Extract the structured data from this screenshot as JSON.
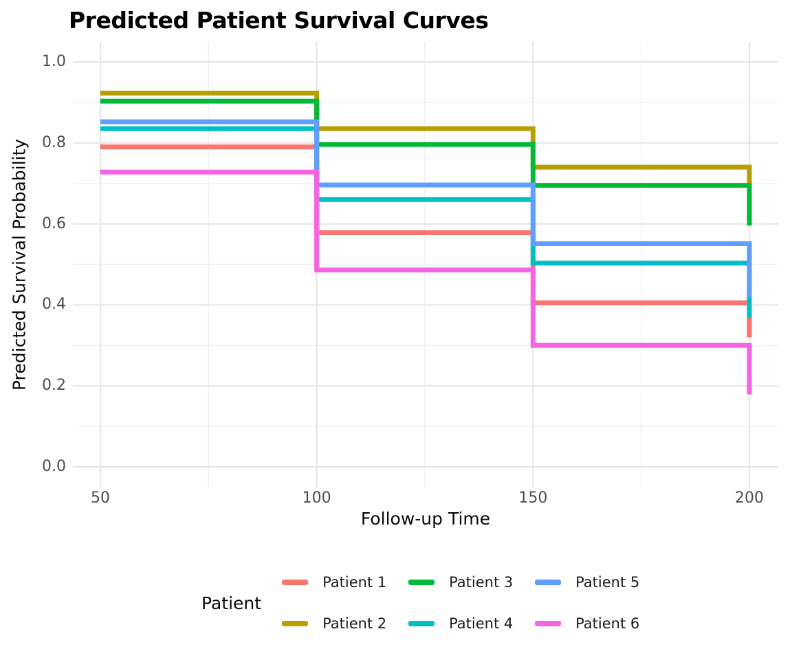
{
  "title": "Predicted Patient Survival Curves",
  "axes": {
    "x_label": "Follow-up Time",
    "y_label": "Predicted Survival Probability",
    "x_tick_labels": [
      "50",
      "100",
      "150",
      "200"
    ],
    "y_tick_labels": [
      "1.0",
      "0.8",
      "0.6",
      "0.4",
      "0.2",
      "0.0"
    ]
  },
  "legend": {
    "title": "Patient",
    "entries": [
      {
        "label": "Patient 1",
        "color": "#F8766D"
      },
      {
        "label": "Patient 2",
        "color": "#B79F00"
      },
      {
        "label": "Patient 3",
        "color": "#00BA38"
      },
      {
        "label": "Patient 4",
        "color": "#00BFC4"
      },
      {
        "label": "Patient 5",
        "color": "#619CFF"
      },
      {
        "label": "Patient 6",
        "color": "#F564E2"
      }
    ]
  },
  "colors": {
    "background": "#FFFFFF",
    "major_gridline": "#E6E6E6",
    "minor_gridline": "#F0F0F0",
    "tick_label": "#4D4D4D",
    "axis_title": "#0A0A0A",
    "plot_title": "#000000"
  },
  "chart_data": {
    "type": "line",
    "step": true,
    "title": "Predicted Patient Survival Curves",
    "xlabel": "Follow-up Time",
    "ylabel": "Predicted Survival Probability",
    "x": [
      50,
      100,
      150,
      200
    ],
    "series": [
      {
        "name": "Patient 1",
        "color": "#F8766D",
        "values": [
          0.79,
          0.578,
          0.405,
          0.32
        ]
      },
      {
        "name": "Patient 2",
        "color": "#B79F00",
        "values": [
          0.923,
          0.835,
          0.74,
          0.7
        ]
      },
      {
        "name": "Patient 3",
        "color": "#00BA38",
        "values": [
          0.903,
          0.796,
          0.695,
          0.596
        ]
      },
      {
        "name": "Patient 4",
        "color": "#00BFC4",
        "values": [
          0.835,
          0.66,
          0.503,
          0.368
        ]
      },
      {
        "name": "Patient 5",
        "color": "#619CFF",
        "values": [
          0.852,
          0.696,
          0.551,
          0.418
        ]
      },
      {
        "name": "Patient 6",
        "color": "#F564E2",
        "values": [
          0.728,
          0.486,
          0.3,
          0.179
        ]
      }
    ],
    "x_ticks_major": [
      50,
      100,
      150,
      200
    ],
    "x_ticks_minor": [
      75,
      125,
      175
    ],
    "y_ticks_major": [
      0.0,
      0.2,
      0.4,
      0.6,
      0.8,
      1.0
    ],
    "y_ticks_minor": [
      0.1,
      0.3,
      0.5,
      0.7,
      0.9
    ],
    "ylim": [
      0.0,
      1.0
    ],
    "xlim": [
      50,
      200
    ],
    "grid": true,
    "legend_position": "bottom",
    "legend_title": "Patient"
  }
}
